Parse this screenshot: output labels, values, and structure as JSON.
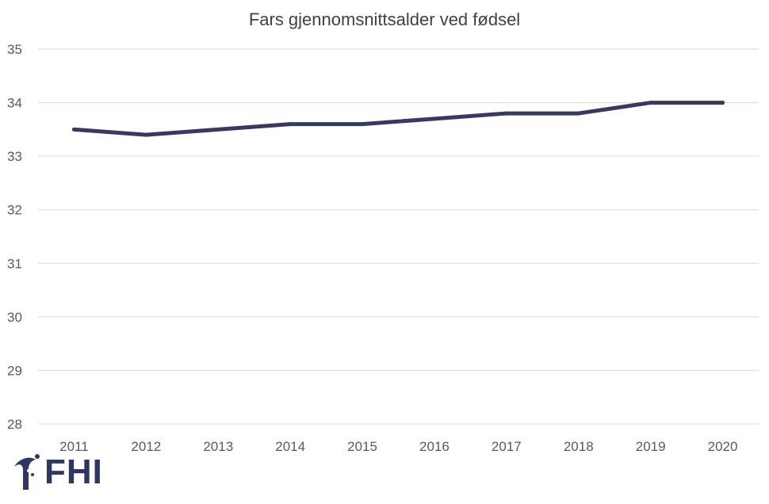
{
  "chart_data": {
    "type": "line",
    "title": "Fars gjennomsnittsalder ved fødsel",
    "categories": [
      "2011",
      "2012",
      "2013",
      "2014",
      "2015",
      "2016",
      "2017",
      "2018",
      "2019",
      "2020"
    ],
    "series": [
      {
        "values": [
          33.5,
          33.4,
          33.5,
          33.6,
          33.6,
          33.7,
          33.8,
          33.8,
          34.0,
          34.0
        ]
      }
    ],
    "ylim": [
      28,
      35
    ],
    "yticks": [
      28,
      29,
      30,
      31,
      32,
      33,
      34,
      35
    ],
    "grid": true,
    "line_color": "#363a5f",
    "grid_color": "#d9d9d9",
    "text_color": "#595959"
  },
  "logo": {
    "text": "FHI",
    "icon": "fhi-logo-icon",
    "color": "#2f3660"
  }
}
